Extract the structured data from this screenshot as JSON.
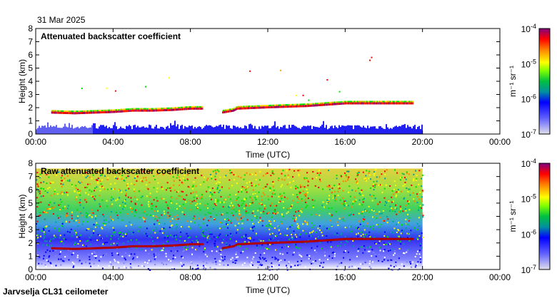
{
  "date": "31 Mar 2025",
  "footer": "Jarvselja CL31 ceilometer",
  "chart_data": [
    {
      "type": "heatmap",
      "title": "Attenuated backscatter coefficient",
      "xlabel": "Time (UTC)",
      "ylabel": "Height (km)",
      "xlim": [
        0,
        24
      ],
      "ylim": [
        0,
        8
      ],
      "xticks": [
        "00:00",
        "04:00",
        "08:00",
        "12:00",
        "16:00",
        "20:00",
        "00:00"
      ],
      "yticks": [
        "0",
        "1",
        "2",
        "3",
        "4",
        "5",
        "6",
        "7",
        "8"
      ],
      "data_end_hour": 20,
      "cloud_base": {
        "hours": [
          0.8,
          2,
          3,
          4,
          5,
          6,
          7,
          8,
          8.6,
          9.6,
          10.2,
          10.4,
          12,
          14,
          16,
          17,
          18,
          19.5
        ],
        "km": [
          1.6,
          1.55,
          1.6,
          1.65,
          1.75,
          1.75,
          1.8,
          1.9,
          1.9,
          1.6,
          1.75,
          1.9,
          2.0,
          2.1,
          2.3,
          2.3,
          2.3,
          2.3
        ]
      },
      "surface_layer_top_km": 0.6,
      "colorbar": {
        "label": "m-1 sr-1",
        "ticks": [
          "10-7",
          "10-6",
          "10-5",
          "10-4"
        ],
        "range": [
          1e-07,
          0.0001
        ],
        "scale": "log"
      }
    },
    {
      "type": "heatmap",
      "title": "Raw attenuated backscatter coefficient",
      "xlabel": "Time (UTC)",
      "ylabel": "Height (km)",
      "xlim": [
        0,
        24
      ],
      "ylim": [
        0,
        8
      ],
      "xticks": [
        "00:00",
        "04:00",
        "08:00",
        "12:00",
        "16:00",
        "20:00",
        "00:00"
      ],
      "yticks": [
        "0",
        "1",
        "2",
        "3",
        "4",
        "5",
        "6",
        "7",
        "8"
      ],
      "data_end_hour": 20,
      "data_top_km": 7.6,
      "colorbar": {
        "label": "m-1 sr-1",
        "ticks": [
          "10-7",
          "10-6",
          "10-5",
          "10-4"
        ],
        "range": [
          1e-07,
          0.0001
        ],
        "scale": "log"
      }
    }
  ],
  "colors": {
    "colormap": [
      "#d8d8e8",
      "#4040ff",
      "#0000e0",
      "#00a0a0",
      "#00e000",
      "#ffff00",
      "#ffa000",
      "#ff0000",
      "#800080"
    ]
  }
}
